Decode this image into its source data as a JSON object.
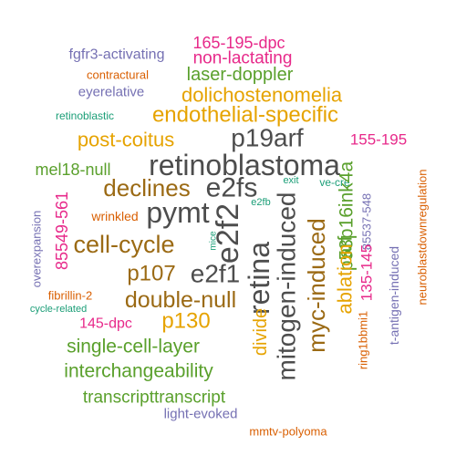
{
  "colors": {
    "gray": "#4d4d4d",
    "brown": "#9b6a14",
    "gold": "#e6a300",
    "green": "#5aa02c",
    "orange": "#d95f02",
    "purple": "#7570b3",
    "magenta": "#e7298a",
    "teal": "#1b9e77"
  },
  "words": [
    {
      "text": "165-195-dpc",
      "color": "magenta"
    },
    {
      "text": "non-lactating",
      "color": "magenta"
    },
    {
      "text": "fgfr3-activating",
      "color": "purple"
    },
    {
      "text": "contractural",
      "color": "orange"
    },
    {
      "text": "laser-doppler",
      "color": "green"
    },
    {
      "text": "eyerelative",
      "color": "purple"
    },
    {
      "text": "dolichostenomelia",
      "color": "gold"
    },
    {
      "text": "retinoblastic",
      "color": "teal"
    },
    {
      "text": "endothelial-specific",
      "color": "gold"
    },
    {
      "text": "post-coitus",
      "color": "gold"
    },
    {
      "text": "p19arf",
      "color": "gray"
    },
    {
      "text": "155-195",
      "color": "magenta"
    },
    {
      "text": "retinoblastoma",
      "color": "gray"
    },
    {
      "text": "mel18-null",
      "color": "green"
    },
    {
      "text": "declines",
      "color": "brown"
    },
    {
      "text": "e2fs",
      "color": "gray"
    },
    {
      "text": "exit",
      "color": "teal"
    },
    {
      "text": "ve-cre",
      "color": "teal"
    },
    {
      "text": "e2fb",
      "color": "teal"
    },
    {
      "text": "pymt",
      "color": "gray"
    },
    {
      "text": "wrinkled",
      "color": "orange"
    },
    {
      "text": "e2f2",
      "color": "gray"
    },
    {
      "text": "mitogen-induced",
      "color": "gray"
    },
    {
      "text": "retina",
      "color": "gray"
    },
    {
      "text": "myc-induced",
      "color": "brown"
    },
    {
      "text": "arf",
      "color": "green"
    },
    {
      "text": "p53p16ink4a",
      "color": "green"
    },
    {
      "text": "85537-548",
      "color": "purple"
    },
    {
      "text": "neuroblastdownregulation",
      "color": "orange"
    },
    {
      "text": "85549-561",
      "color": "magenta"
    },
    {
      "text": "overexpansion",
      "color": "purple"
    },
    {
      "text": "cell-cycle",
      "color": "brown"
    },
    {
      "text": "mice",
      "color": "teal"
    },
    {
      "text": "ablation",
      "color": "gold"
    },
    {
      "text": "135-145",
      "color": "magenta"
    },
    {
      "text": "t-antigen-induced",
      "color": "purple"
    },
    {
      "text": "p107",
      "color": "brown"
    },
    {
      "text": "e2f1",
      "color": "gray"
    },
    {
      "text": "fibrillin-2",
      "color": "orange"
    },
    {
      "text": "double-null",
      "color": "brown"
    },
    {
      "text": "cycle-related",
      "color": "teal"
    },
    {
      "text": "divide",
      "color": "gold"
    },
    {
      "text": "ring1bbmi1",
      "color": "orange"
    },
    {
      "text": "145-dpc",
      "color": "magenta"
    },
    {
      "text": "p130",
      "color": "gold"
    },
    {
      "text": "single-cell-layer",
      "color": "green"
    },
    {
      "text": "interchangeability",
      "color": "green"
    },
    {
      "text": "transcripttranscript",
      "color": "green"
    },
    {
      "text": "light-evoked",
      "color": "purple"
    },
    {
      "text": "mmtv-polyoma",
      "color": "orange"
    }
  ]
}
